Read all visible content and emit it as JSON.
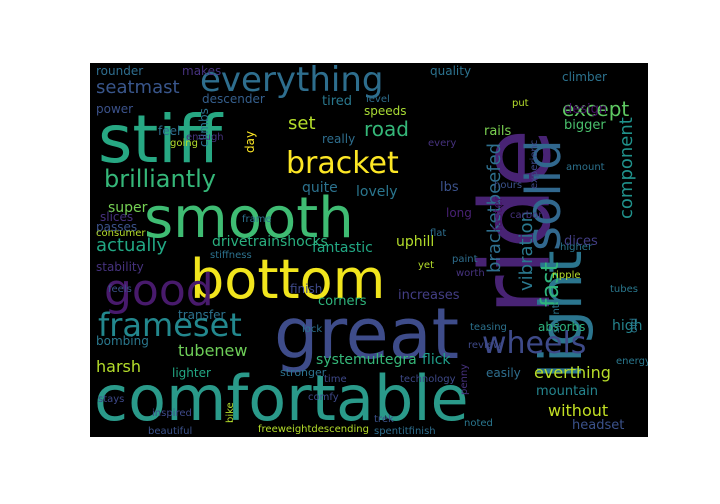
{
  "words": [
    {
      "text": "comfortable",
      "color": "#2a9a8a"
    },
    {
      "text": "bottom",
      "color": "#f1e51d"
    },
    {
      "text": "smooth",
      "color": "#3fbc73"
    },
    {
      "text": "great",
      "color": "#3e4c8a"
    },
    {
      "text": "ride",
      "color": "#482374"
    },
    {
      "text": "stiff",
      "color": "#27a883"
    },
    {
      "text": "light",
      "color": "#2b758e"
    },
    {
      "text": "everything",
      "color": "#2e6e8e"
    },
    {
      "text": "solid",
      "color": "#31688e"
    },
    {
      "text": "bracket",
      "color": "#fde725"
    },
    {
      "text": "good",
      "color": "#481a6c"
    },
    {
      "text": "frameset",
      "color": "#23888e"
    },
    {
      "text": "wheels",
      "color": "#3e4a89"
    },
    {
      "text": "brilliantly",
      "color": "#35b779"
    },
    {
      "text": "fast",
      "color": "#2fb47c"
    },
    {
      "text": "bracketbeefed",
      "color": "#2e6f8e"
    },
    {
      "text": "road",
      "color": "#35b779"
    },
    {
      "text": "except",
      "color": "#5ec962"
    },
    {
      "text": "seatmast",
      "color": "#39568c"
    },
    {
      "text": "set",
      "color": "#b5de2b"
    },
    {
      "text": "actually",
      "color": "#22a884"
    },
    {
      "text": "vibration",
      "color": "#2a788e"
    },
    {
      "text": "component",
      "color": "#20928c"
    },
    {
      "text": "everthing",
      "color": "#b8de29"
    },
    {
      "text": "without",
      "color": "#c2df23"
    },
    {
      "text": "harsh",
      "color": "#b5de2b"
    },
    {
      "text": "tubenew",
      "color": "#6ece58"
    },
    {
      "text": "mountain",
      "color": "#25858e"
    },
    {
      "text": "super",
      "color": "#75d054"
    },
    {
      "text": "uphill",
      "color": "#b5de2b"
    },
    {
      "text": "fantastic",
      "color": "#22a884"
    },
    {
      "text": "drivetrainshocks",
      "color": "#2ab07f"
    },
    {
      "text": "systemultegra",
      "color": "#35b779"
    },
    {
      "text": "lovely",
      "color": "#2a768e"
    },
    {
      "text": "quite",
      "color": "#2c728e"
    },
    {
      "text": "flick",
      "color": "#1f9e89"
    },
    {
      "text": "finish",
      "color": "#3e4989"
    },
    {
      "text": "corners",
      "color": "#2fb47c"
    },
    {
      "text": "increases",
      "color": "#433e85"
    },
    {
      "text": "high",
      "color": "#25848e"
    },
    {
      "text": "absorbs",
      "color": "#2db27d"
    },
    {
      "text": "headset",
      "color": "#3b528b"
    },
    {
      "text": "bigger",
      "color": "#4ac16d"
    },
    {
      "text": "dices",
      "color": "#433e85"
    },
    {
      "text": "downhill",
      "color": "#2ab07f"
    },
    {
      "text": "design",
      "color": "#471063"
    },
    {
      "text": "climber",
      "color": "#2c728e"
    },
    {
      "text": "quality",
      "color": "#2c728e"
    },
    {
      "text": "rounder",
      "color": "#2e6d8e"
    },
    {
      "text": "makes",
      "color": "#46327e"
    },
    {
      "text": "power",
      "color": "#3b528b"
    },
    {
      "text": "feel",
      "color": "#2e6e8e"
    },
    {
      "text": "descender",
      "color": "#355f8d"
    },
    {
      "text": "tired",
      "color": "#2a788e"
    },
    {
      "text": "level",
      "color": "#2e6e8e"
    },
    {
      "text": "speeds",
      "color": "#a8db34"
    },
    {
      "text": "really",
      "color": "#2e6e8e"
    },
    {
      "text": "rails",
      "color": "#7ad151"
    },
    {
      "text": "faster",
      "color": "#481769"
    },
    {
      "text": "long",
      "color": "#482173"
    },
    {
      "text": "lbs",
      "color": "#3b528b"
    },
    {
      "text": "day",
      "color": "#fde725"
    },
    {
      "text": "climbs",
      "color": "#2c728e"
    },
    {
      "text": "slices",
      "color": "#46327e"
    },
    {
      "text": "passes",
      "color": "#3b528b"
    },
    {
      "text": "stability",
      "color": "#46327e"
    },
    {
      "text": "transfer",
      "color": "#2c728e"
    },
    {
      "text": "bombing",
      "color": "#2a788e"
    },
    {
      "text": "lighter",
      "color": "#22a884"
    },
    {
      "text": "stronger",
      "color": "#2c728e"
    },
    {
      "text": "easily",
      "color": "#2e6e8e"
    },
    {
      "text": "comfy",
      "color": "#3e4989"
    },
    {
      "text": "noted",
      "color": "#2a768e"
    },
    {
      "text": "teasing",
      "color": "#2c728e"
    },
    {
      "text": "review",
      "color": "#3e4989"
    },
    {
      "text": "old",
      "color": "#2a788e"
    },
    {
      "text": "sprints",
      "color": "#2a788e"
    },
    {
      "text": "ripple",
      "color": "#b5de2b"
    },
    {
      "text": "higher",
      "color": "#2a768e"
    },
    {
      "text": "gorgeous",
      "color": "#3b528b"
    },
    {
      "text": "worth",
      "color": "#46327e"
    },
    {
      "text": "paint",
      "color": "#2e6e8e"
    },
    {
      "text": "yet",
      "color": "#b5de2b"
    },
    {
      "text": "stiffness",
      "color": "#2c728e"
    },
    {
      "text": "consumer",
      "color": "#b5de2b"
    },
    {
      "text": "going",
      "color": "#b5de2b"
    },
    {
      "text": "every",
      "color": "#46327e"
    },
    {
      "text": "put",
      "color": "#b5de2b"
    },
    {
      "text": "experienc",
      "color": "#3e4989"
    },
    {
      "text": "amount",
      "color": "#2c728e"
    },
    {
      "text": "energy",
      "color": "#2a788e"
    },
    {
      "text": "penny",
      "color": "#46327e"
    },
    {
      "text": "time",
      "color": "#3e4989"
    },
    {
      "text": "technology",
      "color": "#3e4989"
    },
    {
      "text": "trek",
      "color": "#3b528b"
    },
    {
      "text": "bike",
      "color": "#b5de2b"
    },
    {
      "text": "beautiful",
      "color": "#3b528b"
    },
    {
      "text": "freeweightdescending",
      "color": "#b5de2b"
    },
    {
      "text": "spentitfinish",
      "color": "#2e6e8e"
    },
    {
      "text": "carbon",
      "color": "#46327e"
    },
    {
      "text": "frame",
      "color": "#2c728e"
    },
    {
      "text": "feels",
      "color": "#3b528b"
    },
    {
      "text": "lock",
      "color": "#2c728e"
    },
    {
      "text": "inspired",
      "color": "#3e4989"
    },
    {
      "text": "tubes",
      "color": "#2a788e"
    },
    {
      "text": "enough",
      "color": "#46327e"
    },
    {
      "text": "hours",
      "color": "#3b528b"
    },
    {
      "text": "flat",
      "color": "#2e6e8e"
    },
    {
      "text": "stays",
      "color": "#3e4989"
    }
  ]
}
